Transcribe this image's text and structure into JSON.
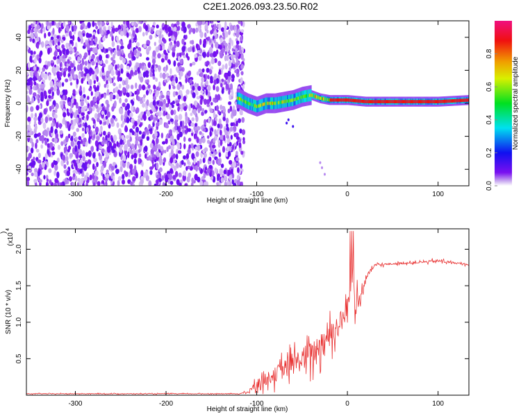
{
  "title": "C2E1.2026.093.23.50.R02",
  "chart_data": [
    {
      "type": "heatmap",
      "name": "spectrogram",
      "xlabel": "Height of straight line (km)",
      "ylabel": "Frequency (Hz)",
      "xlim": [
        -354,
        134
      ],
      "ylim": [
        -50,
        50
      ],
      "xticks": [
        -300,
        -200,
        -100,
        0,
        100
      ],
      "yticks": [
        -40,
        -20,
        0,
        20,
        40
      ],
      "colorbar": {
        "label": "Normalized spectral amplitude",
        "range": [
          0,
          1
        ],
        "ticks": [
          "0.0",
          "0.2",
          "0.4",
          "0.6",
          "0.8"
        ],
        "tick_values": [
          0,
          0.2,
          0.4,
          0.6,
          0.8
        ]
      },
      "noise_region_x": [
        -354,
        -120
      ],
      "ridge": {
        "x": [
          -120,
          -110,
          -100,
          -90,
          -80,
          -70,
          -60,
          -50,
          -40,
          -30,
          -20,
          -10,
          0,
          20,
          50,
          80,
          100,
          134
        ],
        "freq": [
          3,
          0,
          -2,
          0,
          0,
          1,
          2,
          4,
          5,
          3,
          2,
          2,
          2,
          1,
          1,
          1,
          1,
          2
        ]
      }
    },
    {
      "type": "line",
      "name": "snr",
      "xlabel": "Height of straight line (km)",
      "ylabel": "SNR (10 * v/v)",
      "yscale_label": "(x10",
      "yscale_exp": "4",
      "xlim": [
        -354,
        134
      ],
      "ylim": [
        0,
        2.28
      ],
      "xticks": [
        -300,
        -200,
        -100,
        0,
        100
      ],
      "yticks": [
        0.5,
        1.0,
        1.5,
        2.0
      ],
      "ytick_labels": [
        "0.5",
        "1.0",
        "1.5",
        "2.0"
      ],
      "color": "#e83030",
      "x": [
        -354,
        -120,
        -110,
        -100,
        -90,
        -80,
        -70,
        -60,
        -50,
        -40,
        -30,
        -20,
        -10,
        0,
        5,
        10,
        15,
        20,
        30,
        50,
        80,
        100,
        120,
        134
      ],
      "y": [
        0.02,
        0.02,
        0.04,
        0.15,
        0.22,
        0.28,
        0.35,
        0.42,
        0.5,
        0.55,
        0.7,
        0.85,
        0.95,
        1.15,
        1.7,
        1.2,
        1.35,
        1.6,
        1.78,
        1.8,
        1.82,
        1.84,
        1.81,
        1.79
      ],
      "noise": [
        0.01,
        0.01,
        0.03,
        0.15,
        0.2,
        0.25,
        0.3,
        0.35,
        0.4,
        0.45,
        0.45,
        0.45,
        0.4,
        0.4,
        0.5,
        0.4,
        0.3,
        0.1,
        0.04,
        0.03,
        0.03,
        0.05,
        0.03,
        0.03
      ]
    }
  ]
}
